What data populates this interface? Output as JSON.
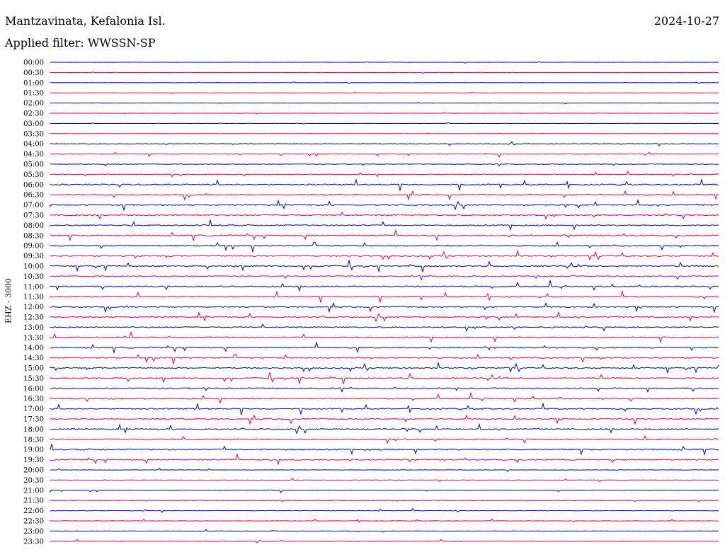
{
  "header": {
    "station": "Mantzavinata, Kefalonia Isl.",
    "date": "2024-10-27",
    "filter": "Applied filter: WWSSN-SP",
    "channel_label": "EHZ - 3000"
  },
  "colors": {
    "blue": "#0000cc",
    "red": "#ee0044",
    "text": "#000000"
  },
  "rows": [
    "00:00",
    "00:30",
    "01:00",
    "01:30",
    "02:00",
    "02:30",
    "03:00",
    "03:30",
    "04:00",
    "04:30",
    "05:00",
    "05:30",
    "06:00",
    "06:30",
    "07:00",
    "07:30",
    "08:00",
    "08:30",
    "09:00",
    "09:30",
    "10:00",
    "10:30",
    "11:00",
    "11:30",
    "12:00",
    "12:30",
    "13:00",
    "13:30",
    "14:00",
    "14:30",
    "15:00",
    "15:30",
    "16:00",
    "16:30",
    "17:00",
    "17:30",
    "18:00",
    "18:30",
    "19:00",
    "19:30",
    "20:00",
    "20:30",
    "21:00",
    "21:30",
    "22:00",
    "22:30",
    "23:00",
    "23:30"
  ]
}
